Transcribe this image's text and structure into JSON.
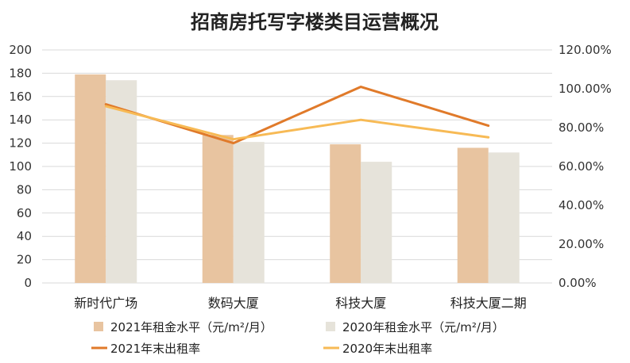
{
  "chart_data": {
    "type": "bar",
    "title": "招商房托写字楼类目运营概况",
    "categories": [
      "新时代广场",
      "数码大厦",
      "科技大厦",
      "科技大厦二期"
    ],
    "y_left": {
      "ylim": [
        0,
        200
      ],
      "ticks": [
        "200",
        "180",
        "160",
        "140",
        "120",
        "100",
        "80",
        "60",
        "40",
        "20",
        "0"
      ]
    },
    "y_right": {
      "ylim": [
        0,
        120
      ],
      "ticks": [
        "120.00%",
        "100.00%",
        "80.00%",
        "60.00%",
        "40.00%",
        "20.00%",
        "0.00%"
      ]
    },
    "series": [
      {
        "name": "2021年租金水平（元/m²/月）",
        "type": "bar",
        "axis": "left",
        "color": "#E8C4A0",
        "values": [
          179,
          127,
          119,
          116
        ]
      },
      {
        "name": "2020年租金水平（元/m²/月）",
        "type": "bar",
        "axis": "left",
        "color": "#E6E3DA",
        "values": [
          174,
          121,
          104,
          112
        ]
      },
      {
        "name": "2021年末出租率",
        "type": "line",
        "axis": "right",
        "color": "#E07A2A",
        "values": [
          92,
          72,
          101,
          81
        ]
      },
      {
        "name": "2020年末出租率",
        "type": "line",
        "axis": "right",
        "color": "#F7BA55",
        "values": [
          91,
          74,
          84,
          75
        ]
      }
    ],
    "grid": true,
    "legend_position": "bottom"
  }
}
